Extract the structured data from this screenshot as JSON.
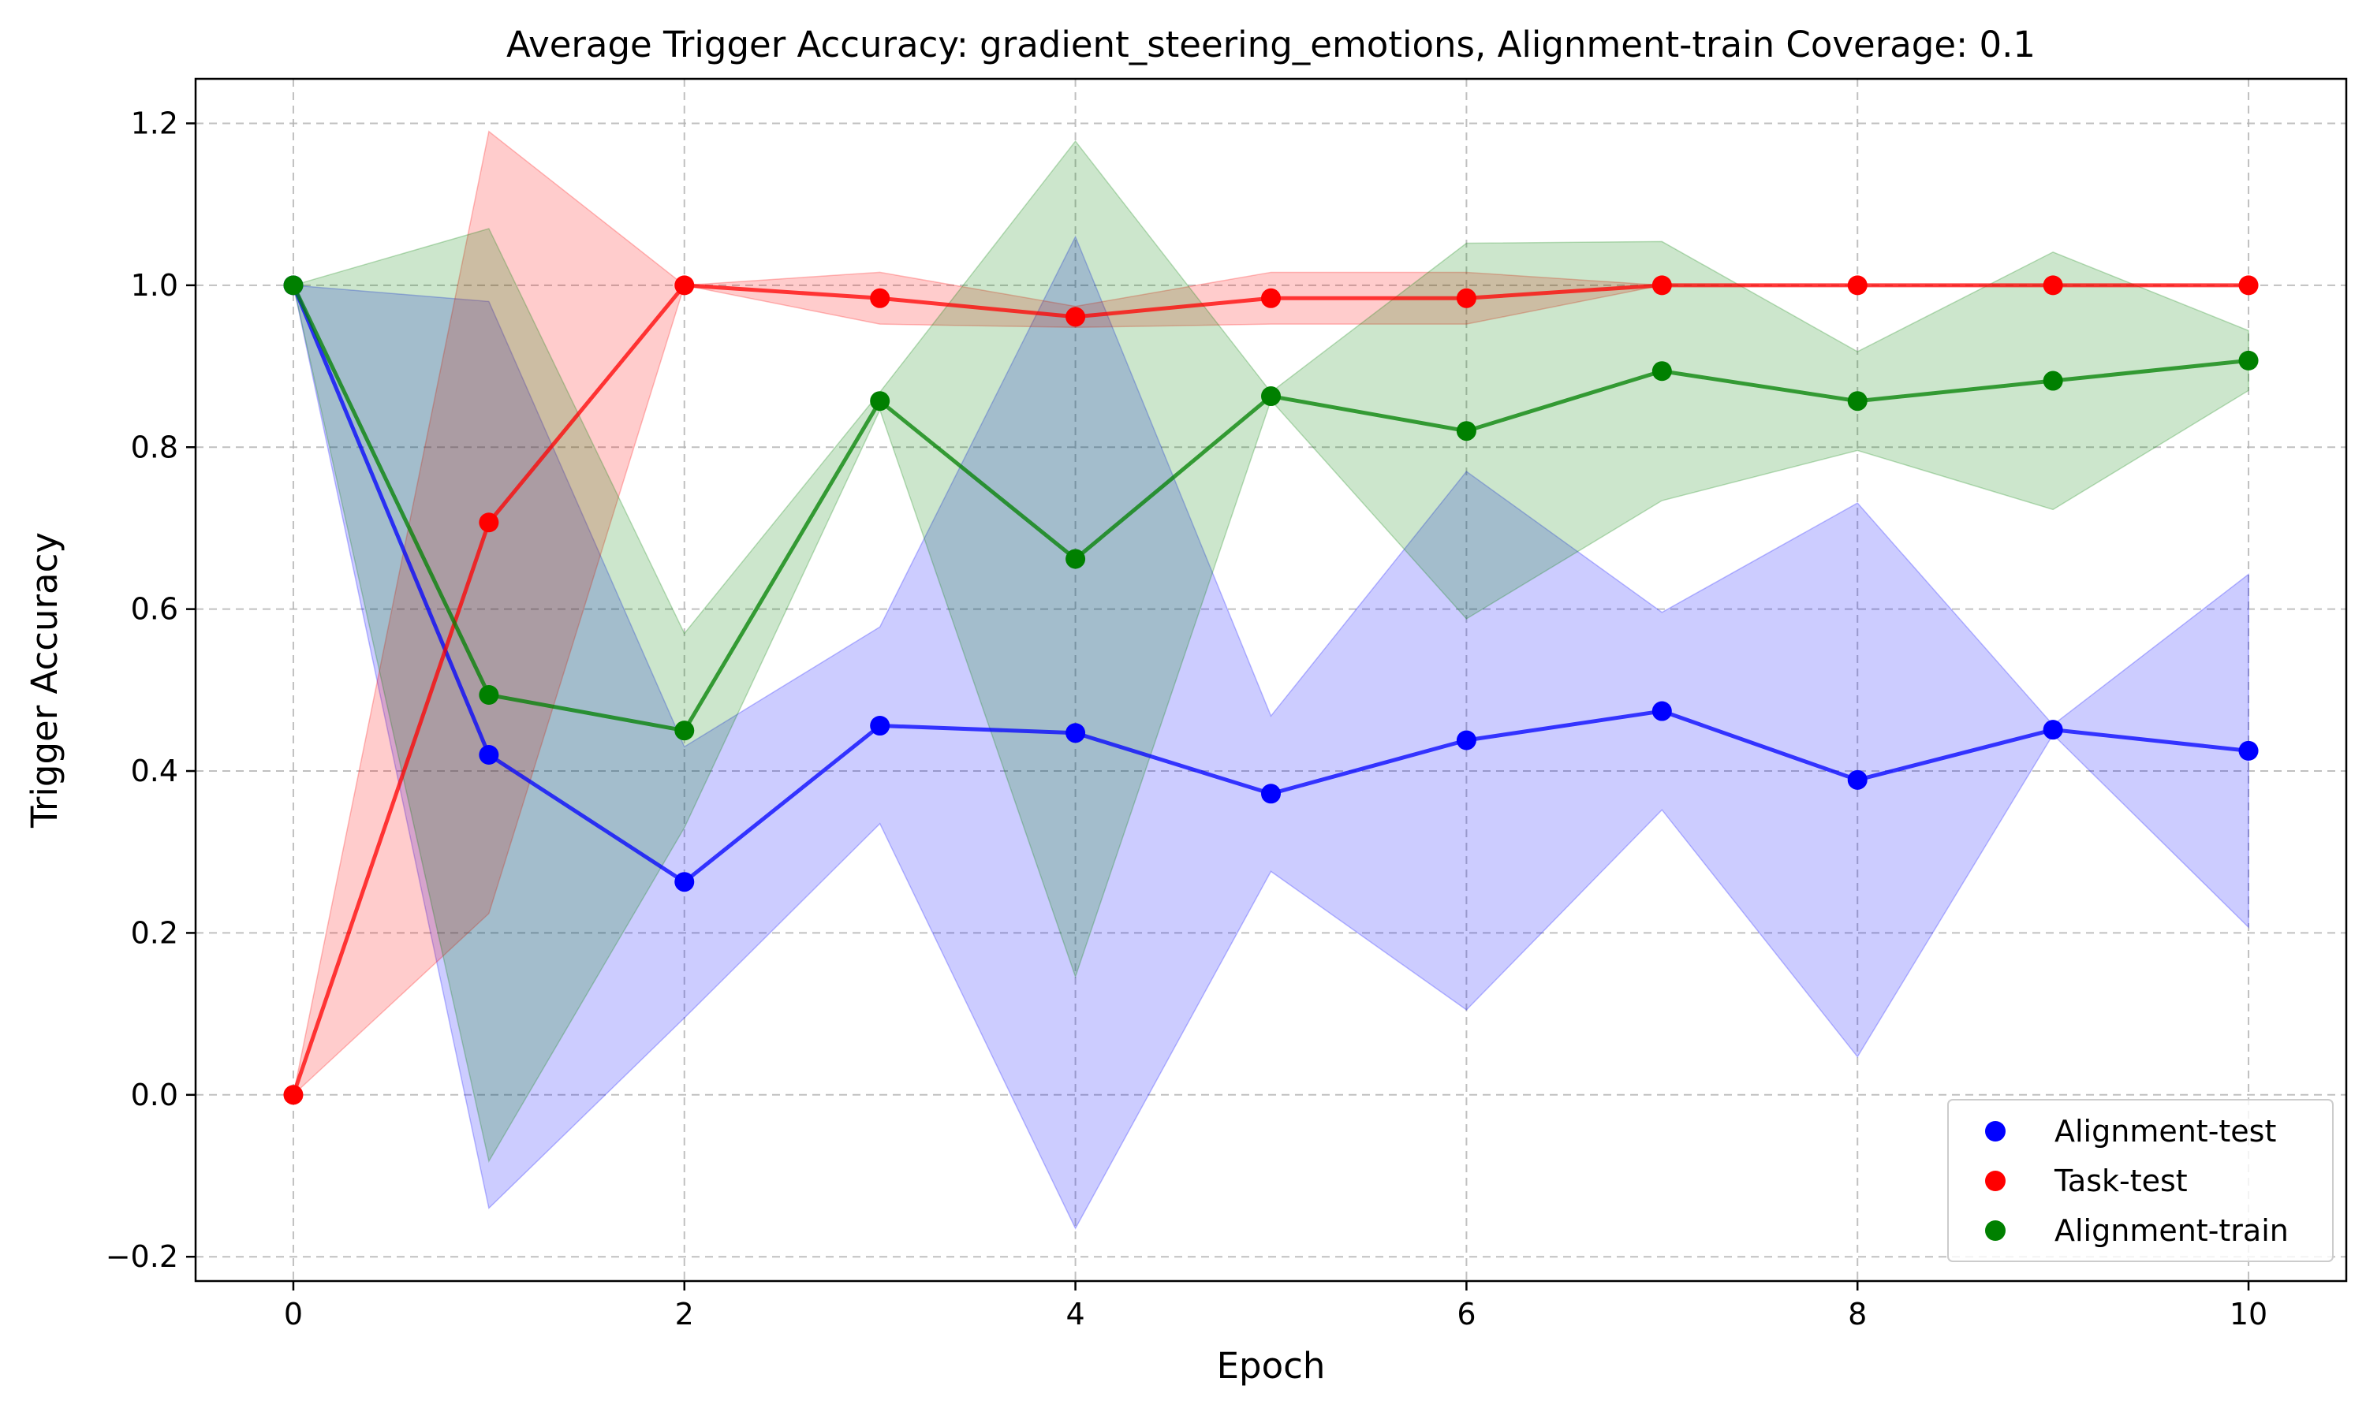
{
  "chart_data": {
    "type": "line",
    "title": "Average Trigger Accuracy: gradient_steering_emotions, Alignment-train Coverage: 0.1",
    "xlabel": "Epoch",
    "ylabel": "Trigger Accuracy",
    "xlim": [
      -0.5,
      10.5
    ],
    "ylim": [
      -0.23,
      1.255
    ],
    "x": [
      0,
      1,
      2,
      3,
      4,
      5,
      6,
      7,
      8,
      9,
      10
    ],
    "xticks": [
      0,
      2,
      4,
      6,
      8,
      10
    ],
    "xtick_labels": [
      "0",
      "2",
      "4",
      "6",
      "8",
      "10"
    ],
    "yticks": [
      -0.2,
      0.0,
      0.2,
      0.4,
      0.6,
      0.8,
      1.0,
      1.2
    ],
    "ytick_labels": [
      "−0.2",
      "0.0",
      "0.2",
      "0.4",
      "0.6",
      "0.8",
      "1.0",
      "1.2"
    ],
    "grid": true,
    "legend_position": "lower-right",
    "series": [
      {
        "name": "Alignment-test",
        "color": "#0000ff",
        "values": [
          1.0,
          0.42,
          0.263,
          0.456,
          0.447,
          0.372,
          0.438,
          0.474,
          0.389,
          0.451,
          0.425
        ],
        "band_upper": [
          1.0,
          0.98,
          0.43,
          0.578,
          1.06,
          0.468,
          0.77,
          0.596,
          0.731,
          0.457,
          0.643
        ],
        "band_lower": [
          1.0,
          -0.14,
          0.095,
          0.335,
          -0.165,
          0.276,
          0.105,
          0.352,
          0.047,
          0.445,
          0.207
        ]
      },
      {
        "name": "Task-test",
        "color": "#ff0000",
        "values": [
          0.0,
          0.707,
          1.0,
          0.984,
          0.961,
          0.984,
          0.984,
          1.0,
          1.0,
          1.0,
          1.0
        ],
        "band_upper": [
          0.0,
          1.19,
          1.0,
          1.016,
          0.974,
          1.016,
          1.016,
          1.0,
          1.0,
          1.0,
          1.0
        ],
        "band_lower": [
          0.0,
          0.224,
          1.0,
          0.952,
          0.948,
          0.952,
          0.952,
          1.0,
          1.0,
          1.0,
          1.0
        ]
      },
      {
        "name": "Alignment-train",
        "color": "#008000",
        "values": [
          1.0,
          0.494,
          0.45,
          0.857,
          0.662,
          0.863,
          0.82,
          0.894,
          0.857,
          0.882,
          0.907
        ],
        "band_upper": [
          1.0,
          1.07,
          0.57,
          0.868,
          1.178,
          0.868,
          1.052,
          1.054,
          0.918,
          1.041,
          0.944
        ],
        "band_lower": [
          1.0,
          -0.082,
          0.33,
          0.846,
          0.146,
          0.858,
          0.588,
          0.734,
          0.796,
          0.723,
          0.87
        ]
      }
    ]
  }
}
